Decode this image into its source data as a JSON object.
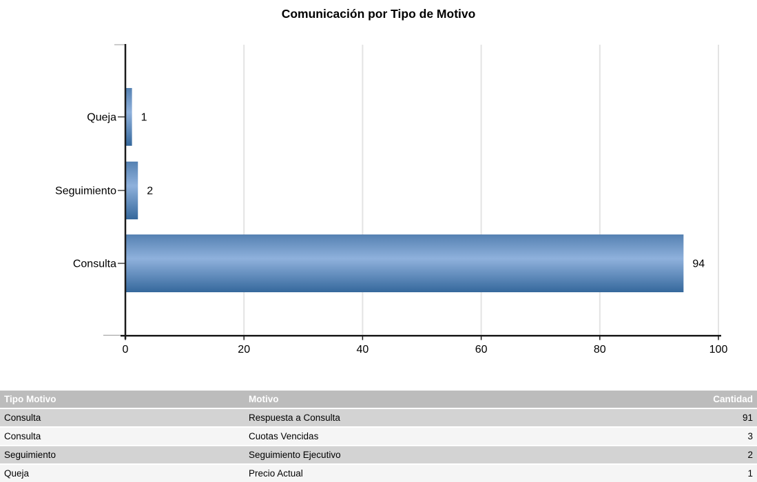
{
  "page": {
    "background": "#ffffff"
  },
  "chart_data": {
    "type": "bar",
    "orientation": "horizontal",
    "title": "Comunicación por Tipo de Motivo",
    "categories": [
      "Queja",
      "Seguimiento",
      "Consulta"
    ],
    "values": [
      1,
      2,
      94
    ],
    "xlabel": "",
    "ylabel": "",
    "xlim": [
      0,
      100
    ],
    "xticks": [
      0,
      20,
      40,
      60,
      80,
      100
    ],
    "grid": "vertical-gridlines",
    "legend": "none",
    "colors": {
      "bar_gradient_top": "#5581B2",
      "bar_gradient_mid": "#8FB1DC",
      "bar_gradient_bottom": "#35689C",
      "gridline": "#E3E3E3",
      "axis": "#1A1A1A",
      "end_tick": "#999999",
      "text": "#000000"
    }
  },
  "table": {
    "columns": [
      {
        "label": "Tipo Motivo",
        "align": "left"
      },
      {
        "label": "Motivo",
        "align": "left"
      },
      {
        "label": "Cantidad",
        "align": "right"
      }
    ],
    "rows": [
      [
        "Consulta",
        "Respuesta a Consulta",
        "91"
      ],
      [
        "Consulta",
        "Cuotas Vencidas",
        "3"
      ],
      [
        "Seguimiento",
        "Seguimiento Ejecutivo",
        "2"
      ],
      [
        "Queja",
        "Precio Actual",
        "1"
      ]
    ],
    "colors": {
      "header_bg": "#BCBCBC",
      "header_text": "#FFFFFF",
      "row_odd_bg": "#D3D3D3",
      "row_even_bg": "#F5F5F5",
      "body_text": "#000000"
    }
  }
}
